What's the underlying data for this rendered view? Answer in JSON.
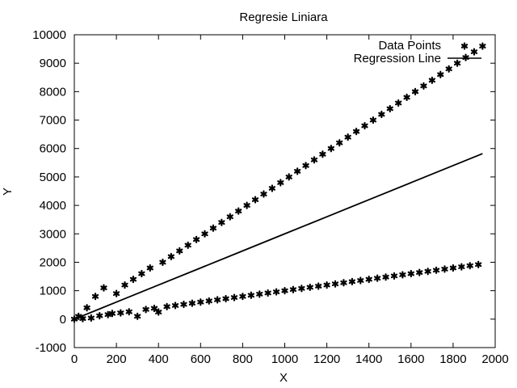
{
  "chart_data": {
    "type": "scatter",
    "title": "Regresie Liniara",
    "xlabel": "X",
    "ylabel": "Y",
    "xlim": [
      0,
      2000
    ],
    "ylim": [
      -1000,
      10000
    ],
    "x_ticks": [
      0,
      200,
      400,
      600,
      800,
      1000,
      1200,
      1400,
      1600,
      1800,
      2000
    ],
    "y_ticks": [
      -1000,
      0,
      1000,
      2000,
      3000,
      4000,
      5000,
      6000,
      7000,
      8000,
      9000,
      10000
    ],
    "grid": false,
    "legend_position": "top-right",
    "series": [
      {
        "name": "Data Points",
        "style": "points",
        "points": [
          [
            0,
            0
          ],
          [
            20,
            100
          ],
          [
            40,
            20
          ],
          [
            60,
            400
          ],
          [
            80,
            40
          ],
          [
            100,
            800
          ],
          [
            120,
            120
          ],
          [
            140,
            1100
          ],
          [
            160,
            160
          ],
          [
            180,
            200
          ],
          [
            200,
            900
          ],
          [
            220,
            220
          ],
          [
            240,
            1200
          ],
          [
            260,
            260
          ],
          [
            280,
            1400
          ],
          [
            300,
            100
          ],
          [
            320,
            1600
          ],
          [
            340,
            340
          ],
          [
            360,
            1800
          ],
          [
            380,
            380
          ],
          [
            400,
            250
          ],
          [
            420,
            2000
          ],
          [
            440,
            440
          ],
          [
            460,
            2200
          ],
          [
            480,
            480
          ],
          [
            500,
            2400
          ],
          [
            520,
            520
          ],
          [
            540,
            2600
          ],
          [
            560,
            560
          ],
          [
            580,
            2800
          ],
          [
            600,
            600
          ],
          [
            620,
            3000
          ],
          [
            640,
            640
          ],
          [
            660,
            3200
          ],
          [
            680,
            680
          ],
          [
            700,
            3400
          ],
          [
            720,
            720
          ],
          [
            740,
            3600
          ],
          [
            760,
            760
          ],
          [
            780,
            3800
          ],
          [
            800,
            800
          ],
          [
            820,
            4000
          ],
          [
            840,
            840
          ],
          [
            860,
            4200
          ],
          [
            880,
            880
          ],
          [
            900,
            4400
          ],
          [
            920,
            920
          ],
          [
            940,
            4600
          ],
          [
            960,
            960
          ],
          [
            980,
            4800
          ],
          [
            1000,
            1000
          ],
          [
            1020,
            5000
          ],
          [
            1040,
            1040
          ],
          [
            1060,
            5200
          ],
          [
            1080,
            1080
          ],
          [
            1100,
            5400
          ],
          [
            1120,
            1120
          ],
          [
            1140,
            5600
          ],
          [
            1160,
            1160
          ],
          [
            1180,
            5800
          ],
          [
            1200,
            1200
          ],
          [
            1220,
            6000
          ],
          [
            1240,
            1240
          ],
          [
            1260,
            6200
          ],
          [
            1280,
            1280
          ],
          [
            1300,
            6400
          ],
          [
            1320,
            1320
          ],
          [
            1340,
            6600
          ],
          [
            1360,
            1360
          ],
          [
            1380,
            6800
          ],
          [
            1400,
            1400
          ],
          [
            1420,
            7000
          ],
          [
            1440,
            1440
          ],
          [
            1460,
            7200
          ],
          [
            1480,
            1480
          ],
          [
            1500,
            7400
          ],
          [
            1520,
            1520
          ],
          [
            1540,
            7600
          ],
          [
            1560,
            1560
          ],
          [
            1580,
            7800
          ],
          [
            1600,
            1600
          ],
          [
            1620,
            8000
          ],
          [
            1640,
            1640
          ],
          [
            1660,
            8200
          ],
          [
            1680,
            1680
          ],
          [
            1700,
            8400
          ],
          [
            1720,
            1720
          ],
          [
            1740,
            8600
          ],
          [
            1760,
            1760
          ],
          [
            1780,
            8800
          ],
          [
            1800,
            1800
          ],
          [
            1820,
            9000
          ],
          [
            1840,
            1840
          ],
          [
            1860,
            9200
          ],
          [
            1880,
            1880
          ],
          [
            1900,
            9400
          ],
          [
            1920,
            1920
          ],
          [
            1940,
            9600
          ]
        ]
      },
      {
        "name": "Regression Line",
        "style": "line",
        "points": [
          [
            0,
            0
          ],
          [
            200,
            600
          ],
          [
            400,
            1200
          ],
          [
            600,
            1800
          ],
          [
            800,
            2400
          ],
          [
            1000,
            3000
          ],
          [
            1200,
            3600
          ],
          [
            1400,
            4200
          ],
          [
            1600,
            4800
          ],
          [
            1800,
            5400
          ],
          [
            1940,
            5820
          ]
        ]
      }
    ]
  }
}
